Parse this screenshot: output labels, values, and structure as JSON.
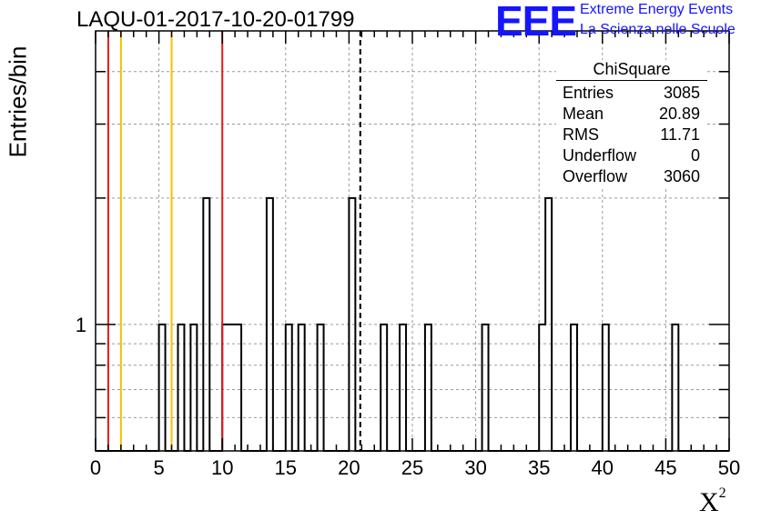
{
  "title": "LAQU-01-2017-10-20-01799",
  "logo": {
    "mark": "EEE",
    "line1": "Extreme Energy Events",
    "line2": "La Scienza nelle Scuole",
    "color": "#1515ff"
  },
  "stats": {
    "name": "ChiSquare",
    "rows": [
      {
        "label": "Entries",
        "value": "3085"
      },
      {
        "label": "Mean",
        "value": "20.89"
      },
      {
        "label": "RMS",
        "value": "11.71"
      },
      {
        "label": "Underflow",
        "value": "0"
      },
      {
        "label": "Overflow",
        "value": "3060"
      }
    ]
  },
  "chart_data": {
    "type": "histogram",
    "ylabel": "Entries/bin",
    "xlabel_base": "X",
    "xlabel_sup": "2",
    "xlim": [
      0,
      50
    ],
    "ylim": [
      0.5,
      5
    ],
    "yscale": "log",
    "xticks": [
      "0",
      "5",
      "10",
      "15",
      "20",
      "25",
      "30",
      "35",
      "40",
      "45",
      "50"
    ],
    "yticks": [
      "1"
    ],
    "grid": true,
    "bin_width": 0.5,
    "bins": [
      {
        "x": 5.0,
        "count": 1
      },
      {
        "x": 6.5,
        "count": 1
      },
      {
        "x": 7.5,
        "count": 1
      },
      {
        "x": 8.5,
        "count": 2
      },
      {
        "x": 10.0,
        "count": 1
      },
      {
        "x": 10.5,
        "count": 1
      },
      {
        "x": 11.0,
        "count": 1
      },
      {
        "x": 13.5,
        "count": 2
      },
      {
        "x": 15.0,
        "count": 1
      },
      {
        "x": 16.0,
        "count": 1
      },
      {
        "x": 17.5,
        "count": 1
      },
      {
        "x": 20.0,
        "count": 2
      },
      {
        "x": 22.5,
        "count": 1
      },
      {
        "x": 24.0,
        "count": 1
      },
      {
        "x": 26.0,
        "count": 1
      },
      {
        "x": 30.5,
        "count": 1
      },
      {
        "x": 35.0,
        "count": 1
      },
      {
        "x": 35.5,
        "count": 2
      },
      {
        "x": 37.5,
        "count": 1
      },
      {
        "x": 40.0,
        "count": 1
      },
      {
        "x": 45.5,
        "count": 1
      }
    ],
    "vertical_lines": [
      {
        "x": 1.0,
        "color": "#e31a1c",
        "style": "solid"
      },
      {
        "x": 2.0,
        "color": "#f2c100",
        "style": "solid"
      },
      {
        "x": 6.0,
        "color": "#f2c100",
        "style": "solid"
      },
      {
        "x": 10.0,
        "color": "#e31a1c",
        "style": "solid"
      },
      {
        "x": 20.89,
        "color": "#000000",
        "style": "dashed"
      }
    ]
  }
}
